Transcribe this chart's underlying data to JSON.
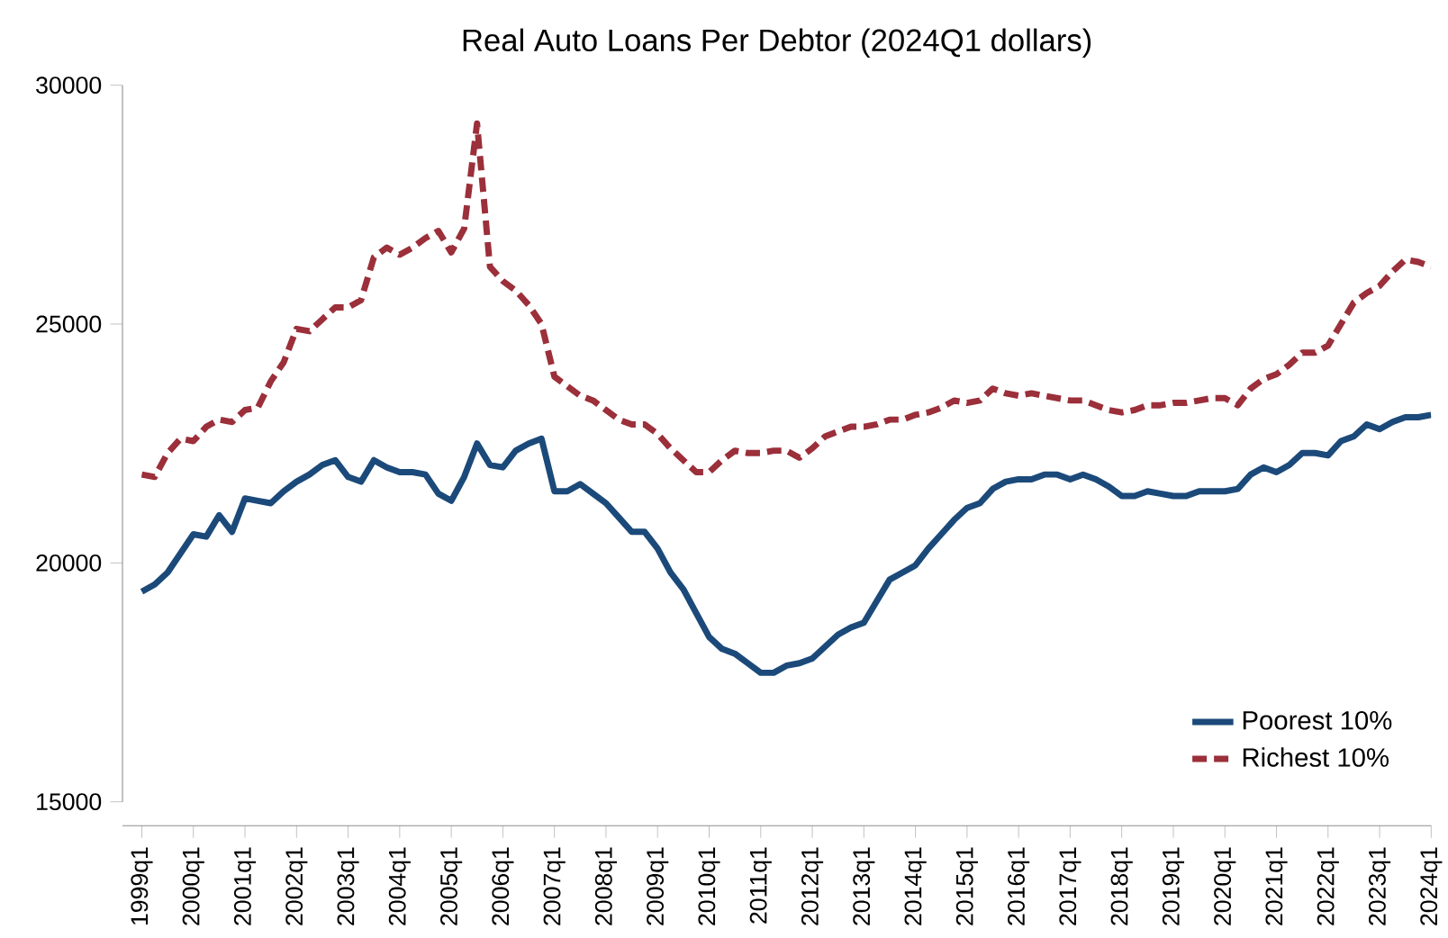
{
  "chart_data": {
    "type": "line",
    "title": "Real Auto Loans Per Debtor (2024Q1 dollars)",
    "categories": [
      "1999q1",
      null,
      null,
      null,
      "2000q1",
      null,
      null,
      null,
      "2001q1",
      null,
      null,
      null,
      "2002q1",
      null,
      null,
      null,
      "2003q1",
      null,
      null,
      null,
      "2004q1",
      null,
      null,
      null,
      "2005q1",
      null,
      null,
      null,
      "2006q1",
      null,
      null,
      null,
      "2007q1",
      null,
      null,
      null,
      "2008q1",
      null,
      null,
      null,
      "2009q1",
      null,
      null,
      null,
      "2010q1",
      null,
      null,
      null,
      "2011q1",
      null,
      null,
      null,
      "2012q1",
      null,
      null,
      null,
      "2013q1",
      null,
      null,
      null,
      "2014q1",
      null,
      null,
      null,
      "2015q1",
      null,
      null,
      null,
      "2016q1",
      null,
      null,
      null,
      "2017q1",
      null,
      null,
      null,
      "2018q1",
      null,
      null,
      null,
      "2019q1",
      null,
      null,
      null,
      "2020q1",
      null,
      null,
      null,
      "2021q1",
      null,
      null,
      null,
      "2022q1",
      null,
      null,
      null,
      "2023q1",
      null,
      null,
      null,
      "2024q1"
    ],
    "series": [
      {
        "name": "Poorest 10%",
        "color": "#1b4a7a",
        "line_style": "solid",
        "values": [
          19400,
          19550,
          19800,
          20200,
          20600,
          20550,
          21000,
          20650,
          21350,
          21300,
          21250,
          21500,
          21700,
          21850,
          22050,
          22150,
          21800,
          21700,
          22150,
          22000,
          21900,
          21900,
          21850,
          21450,
          21300,
          21800,
          22500,
          22050,
          22000,
          22350,
          22500,
          22600,
          21500,
          21500,
          21650,
          21450,
          21250,
          20950,
          20650,
          20650,
          20300,
          19800,
          19450,
          18950,
          18450,
          18200,
          18100,
          17900,
          17700,
          17700,
          17850,
          17900,
          18000,
          18250,
          18500,
          18650,
          18750,
          19200,
          19650,
          19800,
          19950,
          20300,
          20600,
          20900,
          21150,
          21250,
          21550,
          21700,
          21750,
          21750,
          21850,
          21850,
          21750,
          21850,
          21750,
          21600,
          21400,
          21400,
          21500,
          21450,
          21400,
          21400,
          21500,
          21500,
          21500,
          21550,
          21850,
          22000,
          21900,
          22050,
          22300,
          22300,
          22250,
          22550,
          22650,
          22900,
          22800,
          22950,
          23050,
          23050,
          23100
        ]
      },
      {
        "name": "Richest 10%",
        "color": "#9b2f3a",
        "line_style": "dashed",
        "values": [
          21850,
          21800,
          22300,
          22600,
          22550,
          22850,
          23000,
          22950,
          23200,
          23250,
          23800,
          24200,
          24900,
          24850,
          25100,
          25350,
          25350,
          25500,
          26400,
          26600,
          26450,
          26600,
          26800,
          26950,
          26500,
          27000,
          29200,
          26200,
          25900,
          25700,
          25400,
          25000,
          23900,
          23700,
          23500,
          23400,
          23200,
          23000,
          22900,
          22900,
          22700,
          22400,
          22150,
          21900,
          21900,
          22150,
          22350,
          22300,
          22300,
          22350,
          22350,
          22200,
          22400,
          22650,
          22750,
          22850,
          22850,
          22900,
          23000,
          23000,
          23100,
          23150,
          23250,
          23400,
          23350,
          23400,
          23650,
          23550,
          23500,
          23550,
          23500,
          23450,
          23400,
          23400,
          23300,
          23200,
          23150,
          23200,
          23300,
          23300,
          23350,
          23350,
          23400,
          23450,
          23450,
          23300,
          23650,
          23850,
          23950,
          24150,
          24400,
          24400,
          24550,
          25000,
          25450,
          25650,
          25800,
          26100,
          26350,
          26300,
          26200
        ]
      }
    ],
    "ylim": [
      15000,
      30000
    ],
    "yticks": [
      15000,
      20000,
      25000,
      30000
    ],
    "grid": false,
    "legend": "bottom right"
  }
}
